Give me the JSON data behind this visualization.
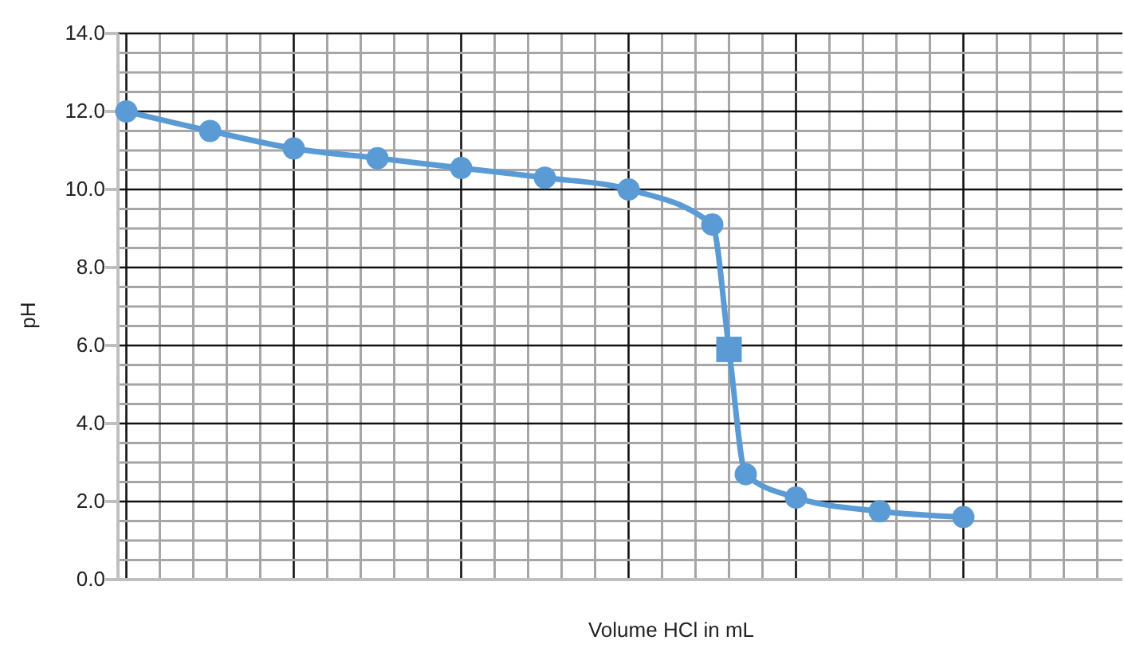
{
  "chart_data": {
    "type": "line",
    "xlabel": "Volume HCl in mL",
    "ylabel": "pH",
    "categories": [
      null,
      null,
      null,
      null,
      null,
      null,
      null,
      null,
      null,
      null,
      null,
      null,
      null,
      null,
      null,
      null,
      null,
      null,
      null,
      null,
      null,
      null,
      null,
      null,
      null,
      null,
      null,
      null,
      null,
      null,
      null,
      null,
      null,
      null,
      null,
      null,
      null,
      null,
      null,
      null,
      null,
      null,
      null,
      null,
      null,
      null,
      null,
      null,
      null,
      null,
      null,
      null,
      null,
      null,
      null,
      null,
      null,
      null,
      null,
      null
    ],
    "ylim": [
      0,
      14
    ],
    "yticks": [
      {
        "value": 0,
        "label": "0.0"
      },
      {
        "value": 0.5,
        "label": null
      },
      {
        "value": 1,
        "label": null
      },
      {
        "value": 1.5,
        "label": null
      },
      {
        "value": 2,
        "label": "2.0"
      },
      {
        "value": 2.5,
        "label": null
      },
      {
        "value": 3,
        "label": null
      },
      {
        "value": 3.5,
        "label": null
      },
      {
        "value": 4,
        "label": "4.0"
      },
      {
        "value": 4.5,
        "label": null
      },
      {
        "value": 5,
        "label": null
      },
      {
        "value": 5.5,
        "label": null
      },
      {
        "value": 6,
        "label": "6.0"
      },
      {
        "value": 6.5,
        "label": null
      },
      {
        "value": 7,
        "label": null
      },
      {
        "value": 7.5,
        "label": null
      },
      {
        "value": 8,
        "label": "8.0"
      },
      {
        "value": 8.5,
        "label": null
      },
      {
        "value": 9,
        "label": null
      },
      {
        "value": 9.5,
        "label": null
      },
      {
        "value": 10,
        "label": "10.0"
      },
      {
        "value": 10.5,
        "label": null
      },
      {
        "value": 11,
        "label": null
      },
      {
        "value": 11.5,
        "label": null
      },
      {
        "value": 12,
        "label": "12.0"
      },
      {
        "value": 12.5,
        "label": null
      },
      {
        "value": 13,
        "label": null
      },
      {
        "value": 13.5,
        "label": null
      },
      {
        "value": 14,
        "label": "14.0"
      }
    ],
    "grid": true,
    "marker": "circle",
    "line_style": "solid",
    "series": [
      {
        "color": "#5b9bd5",
        "values": [
          12.0,
          null,
          null,
          null,
          null,
          11.5,
          null,
          null,
          null,
          null,
          11.05,
          null,
          null,
          null,
          null,
          10.8,
          null,
          null,
          null,
          null,
          10.55,
          null,
          null,
          null,
          null,
          10.3,
          null,
          null,
          null,
          null,
          10.0,
          null,
          null,
          null,
          null,
          9.1,
          5.9,
          2.7,
          null,
          null,
          2.1,
          null,
          null,
          null,
          null,
          1.75,
          null,
          null,
          null,
          null,
          1.6,
          null,
          null,
          null,
          null,
          null,
          null,
          null,
          null,
          null
        ]
      },
      {
        "type": "scatter",
        "marker": "square",
        "color": "#5b9bd5",
        "values": [
          null,
          null,
          null,
          null,
          null,
          null,
          null,
          null,
          null,
          null,
          null,
          null,
          null,
          null,
          null,
          null,
          null,
          null,
          null,
          null,
          null,
          null,
          null,
          null,
          null,
          null,
          null,
          null,
          null,
          null,
          null,
          null,
          null,
          null,
          null,
          null,
          5.9,
          null,
          null,
          null,
          null,
          null,
          null,
          null,
          null,
          null,
          null,
          null,
          null,
          null,
          null,
          null,
          null,
          null,
          null,
          null,
          null,
          null,
          null,
          null
        ]
      }
    ]
  }
}
